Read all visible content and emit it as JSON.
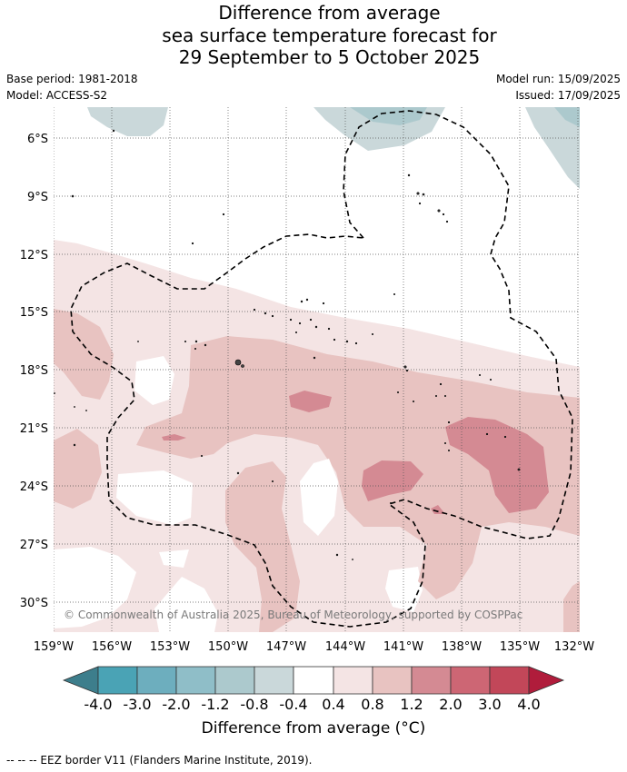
{
  "title": {
    "line1": "Difference from average",
    "line2": "sea surface temperature forecast for",
    "line3": "29 September to 5 October 2025"
  },
  "meta": {
    "base_period": "Base period: 1981-2018",
    "model": "Model: ACCESS-S2",
    "model_run": "Model run: 15/09/2025",
    "issued": "Issued: 17/09/2025"
  },
  "map": {
    "copyright": "© Commonwealth of Australia 2025, Bureau of Meteorology, supported by COSPPac",
    "lat_labels": [
      "6°S",
      "9°S",
      "12°S",
      "15°S",
      "18°S",
      "21°S",
      "24°S",
      "27°S",
      "30°S"
    ],
    "lon_labels": [
      "159°W",
      "156°W",
      "153°W",
      "150°W",
      "147°W",
      "144°W",
      "141°W",
      "138°W",
      "135°W",
      "132°W"
    ]
  },
  "colorbar": {
    "title": "Difference from average (°C)",
    "tick_labels": [
      "-4.0",
      "-3.0",
      "-2.0",
      "-1.2",
      "-0.8",
      "-0.4",
      "0.4",
      "0.8",
      "1.2",
      "2.0",
      "3.0",
      "4.0"
    ],
    "colors": {
      "under": "#3d7e8c",
      "bins": [
        "#4aa3b5",
        "#6daebe",
        "#8fbec8",
        "#acc9cd",
        "#cad8da",
        "#ffffff",
        "#f4e4e4",
        "#e8c3c1",
        "#d48a93",
        "#cd6674",
        "#c24759"
      ],
      "over": "#b01c3b"
    }
  },
  "footnote": "-- -- -- EEZ border V11 (Flanders Marine Institute, 2019)."
}
